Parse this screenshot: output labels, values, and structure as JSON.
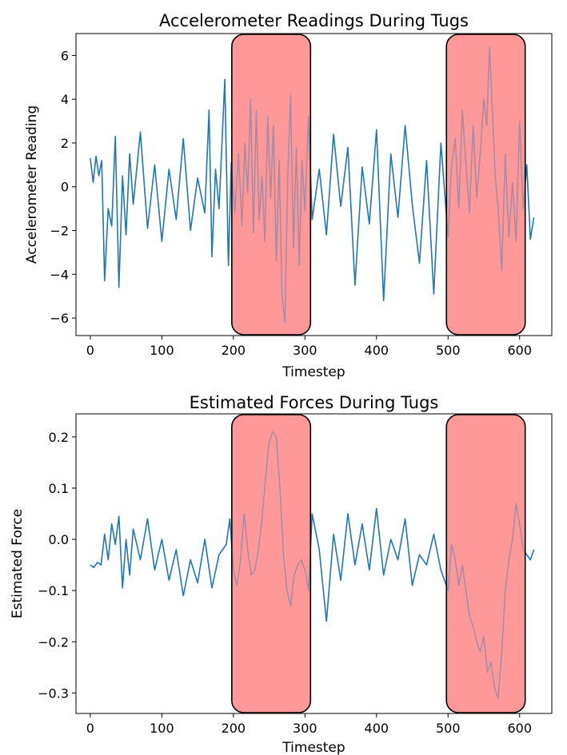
{
  "chart_data": [
    {
      "type": "line",
      "title": "Accelerometer Readings During Tugs",
      "xlabel": "Timestep",
      "ylabel": "Accelerometer Reading",
      "xlim": [
        -20,
        645
      ],
      "ylim": [
        -6.8,
        7.0
      ],
      "xticks": [
        0,
        100,
        200,
        300,
        400,
        500,
        600
      ],
      "yticks": [
        -6,
        -4,
        -2,
        0,
        2,
        4,
        6
      ],
      "line_color": "#1f77b4",
      "highlight_color": "#ff9a9a",
      "highlight_regions": [
        [
          200,
          300
        ],
        [
          500,
          600
        ]
      ],
      "series": [
        {
          "x": [
            0,
            4,
            8,
            12,
            16,
            20,
            25,
            30,
            35,
            40,
            45,
            50,
            55,
            60,
            70,
            80,
            90,
            100,
            110,
            120,
            130,
            140,
            150,
            160,
            166,
            170,
            175,
            180,
            188,
            193,
            197,
            202,
            207,
            212,
            216,
            220,
            224,
            228,
            232,
            236,
            240,
            244,
            248,
            252,
            256,
            260,
            264,
            268,
            272,
            276,
            280,
            284,
            288,
            292,
            296,
            300,
            305,
            310,
            320,
            330,
            340,
            350,
            360,
            370,
            380,
            390,
            400,
            410,
            420,
            430,
            440,
            450,
            460,
            470,
            480,
            490,
            500,
            505,
            510,
            515,
            520,
            525,
            530,
            535,
            540,
            545,
            550,
            554,
            558,
            562,
            566,
            570,
            575,
            580,
            585,
            590,
            595,
            600,
            605,
            610,
            615,
            620
          ],
          "values": [
            1.3,
            0.2,
            1.4,
            0.5,
            1.2,
            -4.3,
            -1.0,
            -1.8,
            2.3,
            -4.6,
            0.5,
            -2.2,
            1.5,
            -0.8,
            2.5,
            -1.9,
            1.0,
            -2.5,
            0.8,
            -1.5,
            2.2,
            -2.0,
            0.4,
            -1.2,
            3.5,
            -3.2,
            0.8,
            -1.0,
            4.9,
            -3.6,
            1.1,
            -1.2,
            1.5,
            -1.8,
            2.0,
            -0.3,
            4.0,
            -2.1,
            3.5,
            -1.5,
            0.5,
            -2.5,
            3.2,
            -0.5,
            2.8,
            -3.4,
            1.2,
            -5.0,
            -6.2,
            0.5,
            4.2,
            -2.8,
            1.8,
            -3.6,
            1.2,
            -1.1,
            3.2,
            -1.5,
            0.8,
            -2.2,
            2.4,
            -0.9,
            1.8,
            -4.5,
            0.9,
            -1.7,
            2.6,
            -5.2,
            1.5,
            -1.4,
            2.8,
            -0.8,
            -3.5,
            1.2,
            -4.9,
            2.0,
            -2.3,
            1.0,
            2.2,
            -1.0,
            3.5,
            1.0,
            -1.2,
            2.8,
            -0.5,
            1.5,
            4.0,
            2.8,
            6.4,
            3.5,
            0.5,
            -1.0,
            -3.8,
            1.5,
            -2.3,
            0.2,
            -2.5,
            3.0,
            -1.0,
            1.0,
            -2.4,
            -1.4
          ]
        }
      ]
    },
    {
      "type": "line",
      "title": "Estimated Forces During Tugs",
      "xlabel": "Timestep",
      "ylabel": "Estimated Force",
      "xlim": [
        -20,
        645
      ],
      "ylim": [
        -0.34,
        0.245
      ],
      "xticks": [
        0,
        100,
        200,
        300,
        400,
        500,
        600
      ],
      "yticks": [
        -0.3,
        -0.2,
        -0.1,
        0.0,
        0.1,
        0.2
      ],
      "line_color": "#1f77b4",
      "highlight_color": "#ff9a9a",
      "highlight_regions": [
        [
          200,
          300
        ],
        [
          500,
          600
        ]
      ],
      "series": [
        {
          "x": [
            0,
            5,
            10,
            15,
            20,
            25,
            30,
            35,
            40,
            45,
            50,
            55,
            60,
            70,
            80,
            90,
            100,
            110,
            120,
            130,
            140,
            150,
            160,
            170,
            180,
            190,
            195,
            200,
            205,
            210,
            215,
            220,
            225,
            230,
            235,
            240,
            245,
            250,
            255,
            260,
            265,
            270,
            275,
            280,
            285,
            290,
            295,
            300,
            305,
            310,
            320,
            330,
            340,
            350,
            360,
            370,
            380,
            390,
            400,
            410,
            420,
            430,
            440,
            450,
            460,
            470,
            480,
            490,
            500,
            505,
            510,
            515,
            520,
            525,
            530,
            535,
            540,
            545,
            550,
            555,
            560,
            565,
            570,
            575,
            580,
            585,
            590,
            595,
            600,
            605,
            610,
            615,
            620
          ],
          "values": [
            -0.05,
            -0.055,
            -0.045,
            -0.05,
            0.01,
            -0.04,
            0.03,
            -0.01,
            0.045,
            -0.095,
            0.0,
            -0.07,
            0.02,
            -0.04,
            0.04,
            -0.06,
            0.0,
            -0.08,
            -0.02,
            -0.11,
            -0.04,
            -0.085,
            0.0,
            -0.095,
            -0.03,
            -0.01,
            0.04,
            -0.06,
            -0.09,
            -0.04,
            0.05,
            -0.02,
            -0.07,
            -0.06,
            -0.02,
            0.04,
            0.12,
            0.19,
            0.21,
            0.2,
            0.1,
            -0.03,
            -0.1,
            -0.13,
            -0.07,
            -0.05,
            -0.04,
            -0.06,
            -0.1,
            0.05,
            -0.02,
            -0.16,
            0.01,
            -0.08,
            0.05,
            -0.05,
            0.03,
            -0.06,
            0.06,
            -0.07,
            0.0,
            -0.04,
            0.04,
            -0.09,
            -0.03,
            -0.05,
            0.01,
            -0.06,
            -0.1,
            -0.01,
            -0.04,
            -0.09,
            -0.05,
            -0.1,
            -0.15,
            -0.17,
            -0.2,
            -0.22,
            -0.19,
            -0.26,
            -0.24,
            -0.29,
            -0.31,
            -0.22,
            -0.1,
            -0.04,
            0.0,
            0.07,
            0.03,
            -0.02,
            -0.03,
            -0.04,
            -0.02
          ]
        }
      ]
    }
  ]
}
